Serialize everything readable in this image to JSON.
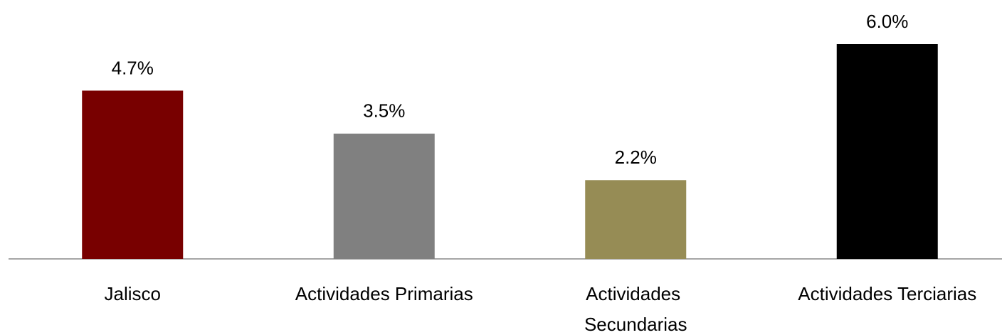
{
  "chart_data": {
    "type": "bar",
    "categories": [
      "Jalisco",
      "Actividades Primarias",
      "Actividades Secundarias",
      "Actividades Terciarias"
    ],
    "values": [
      4.7,
      3.5,
      2.2,
      6.0
    ],
    "value_labels": [
      "4.7%",
      "3.5%",
      "2.2%",
      "6.0%"
    ],
    "colors": [
      "#780000",
      "#808080",
      "#968c55",
      "#000000"
    ]
  }
}
